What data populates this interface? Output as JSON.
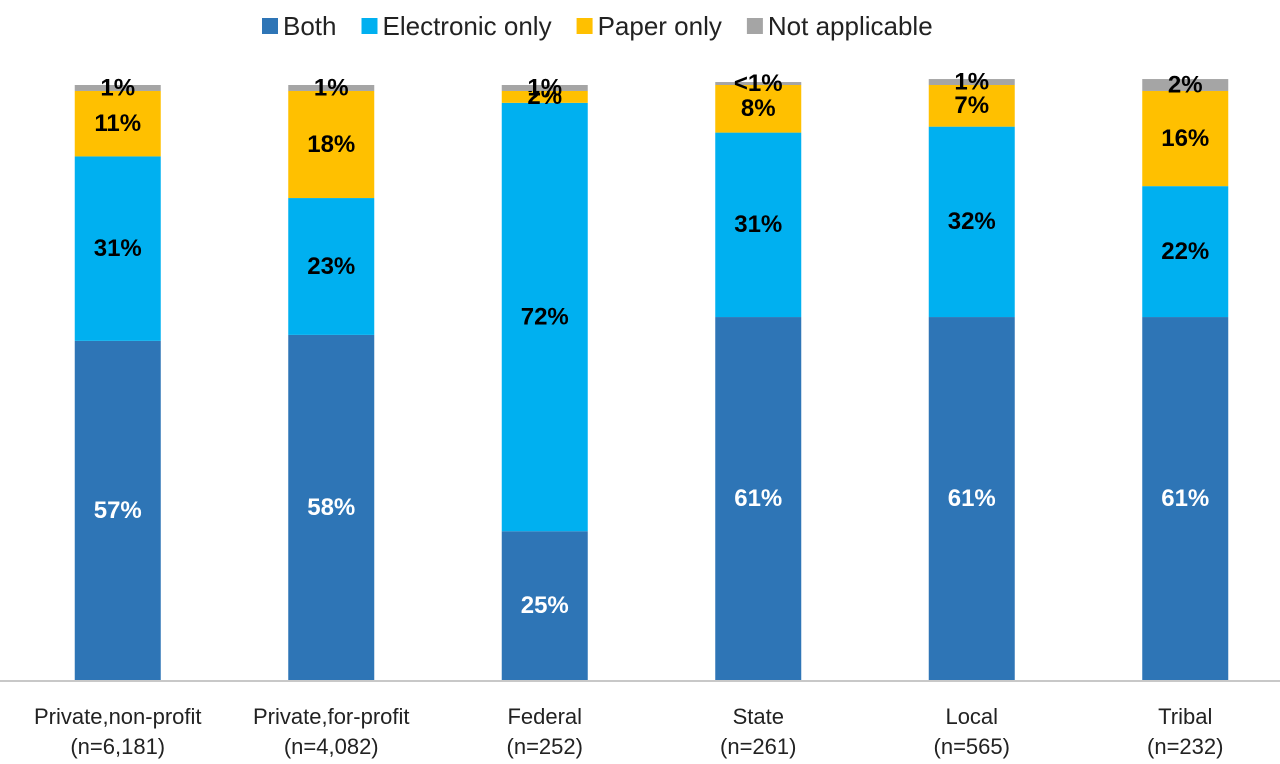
{
  "chart_data": {
    "type": "stacked-bar",
    "categories": [
      [
        "Private,non-profit",
        "(n=6,181)"
      ],
      [
        "Private,for-profit",
        "(n=4,082)"
      ],
      [
        "Federal",
        "(n=252)"
      ],
      [
        "State",
        "(n=261)"
      ],
      [
        "Local",
        "(n=565)"
      ],
      [
        "Tribal",
        "(n=232)"
      ]
    ],
    "ylim": [
      0,
      100
    ],
    "series": [
      {
        "name": "Both",
        "color": "#2e75b6",
        "label_color": "#ffffff",
        "values": [
          57,
          58,
          25,
          61,
          61,
          61
        ],
        "value_labels": [
          "57%",
          "58%",
          "25%",
          "61%",
          "61%",
          "61%"
        ]
      },
      {
        "name": "Electronic only",
        "color": "#00b0f0",
        "label_color": "#000000",
        "values": [
          31,
          23,
          72,
          31,
          32,
          22
        ],
        "value_labels": [
          "31%",
          "23%",
          "72%",
          "31%",
          "32%",
          "22%"
        ]
      },
      {
        "name": "Paper only",
        "color": "#ffc000",
        "label_color": "#000000",
        "values": [
          11,
          18,
          2,
          8,
          7,
          16
        ],
        "value_labels": [
          "11%",
          "18%",
          "2%",
          "8%",
          "7%",
          "16%"
        ]
      },
      {
        "name": "Not applicable",
        "color": "#a5a5a5",
        "label_color": "#000000",
        "values": [
          1,
          1,
          1,
          0.5,
          1,
          2
        ],
        "value_labels": [
          "1%",
          "1%",
          "1%",
          "<1%",
          "1%",
          "2%"
        ]
      }
    ]
  }
}
